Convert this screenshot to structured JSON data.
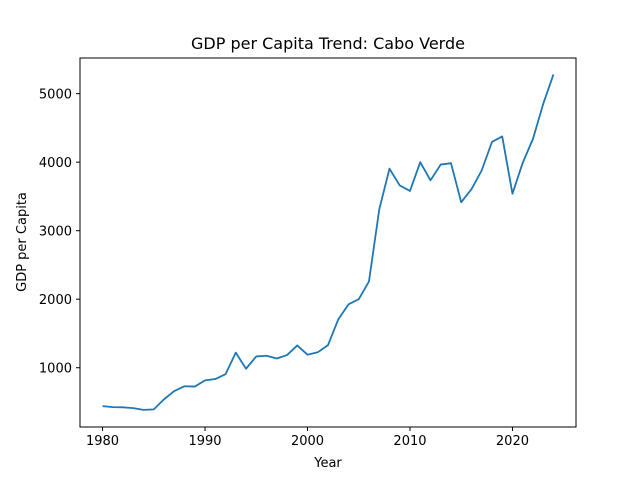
{
  "chart_data": {
    "type": "line",
    "title": "GDP per Capita Trend: Cabo Verde",
    "xlabel": "Year",
    "ylabel": "GDP per Capita",
    "xlim": [
      1977.8,
      2026.2
    ],
    "ylim": [
      135,
      5520
    ],
    "xticks": [
      1980,
      1990,
      2000,
      2010,
      2020
    ],
    "yticks": [
      1000,
      2000,
      3000,
      4000,
      5000
    ],
    "grid": false,
    "line_color": "#1f77b4",
    "series": [
      {
        "x": [
          1980,
          1981,
          1982,
          1983,
          1984,
          1985,
          1986,
          1987,
          1988,
          1989,
          1990,
          1991,
          1992,
          1993,
          1994,
          1995,
          1996,
          1997,
          1998,
          1999,
          2000,
          2001,
          2002,
          2003,
          2004,
          2005,
          2006,
          2007,
          2008,
          2009,
          2010,
          2011,
          2012,
          2013,
          2014,
          2015,
          2016,
          2017,
          2018,
          2019,
          2020,
          2021,
          2022,
          2023,
          2024
        ],
        "values": [
          440,
          425,
          422,
          410,
          385,
          392,
          540,
          660,
          730,
          725,
          815,
          835,
          905,
          1220,
          985,
          1165,
          1175,
          1135,
          1185,
          1325,
          1190,
          1225,
          1330,
          1705,
          1925,
          2000,
          2260,
          3310,
          3905,
          3660,
          3580,
          4000,
          3735,
          3965,
          3985,
          3415,
          3605,
          3880,
          4295,
          4375,
          3540,
          3990,
          4340,
          4850,
          5280
        ]
      }
    ]
  }
}
